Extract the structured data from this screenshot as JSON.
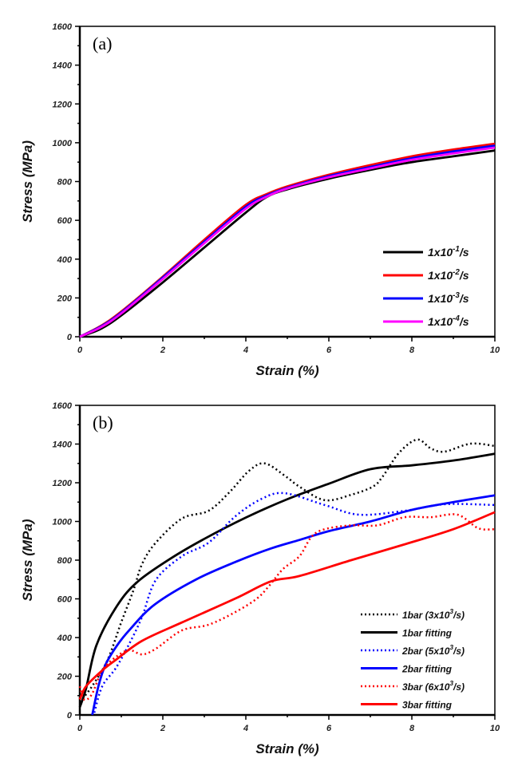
{
  "chart_data": [
    {
      "type": "line",
      "panel_label": "(a)",
      "xlabel": "Strain (%)",
      "ylabel": "Stress (MPa)",
      "xlim": [
        0,
        10
      ],
      "ylim": [
        0,
        1600
      ],
      "xticks": [
        0,
        2,
        4,
        6,
        8,
        10
      ],
      "yticks": [
        0,
        200,
        400,
        600,
        800,
        1000,
        1200,
        1400,
        1600
      ],
      "grid": false,
      "legend_position": "bottom-right",
      "series": [
        {
          "name": "1x10-1/s",
          "name_base": "1x10",
          "name_exp": "-1",
          "name_unit": "/s",
          "color": "#000000",
          "style": "solid",
          "points": [
            [
              0,
              0
            ],
            [
              0.5,
              40
            ],
            [
              1,
              110
            ],
            [
              2,
              280
            ],
            [
              3,
              460
            ],
            [
              4,
              640
            ],
            [
              4.5,
              720
            ],
            [
              5,
              760
            ],
            [
              6,
              815
            ],
            [
              7,
              860
            ],
            [
              8,
              900
            ],
            [
              9,
              930
            ],
            [
              10,
              960
            ]
          ]
        },
        {
          "name": "1x10-2/s",
          "name_base": "1x10",
          "name_exp": "-2",
          "name_unit": "/s",
          "color": "#ff0000",
          "style": "solid",
          "points": [
            [
              0,
              0
            ],
            [
              0.5,
              55
            ],
            [
              1,
              130
            ],
            [
              2,
              310
            ],
            [
              3,
              500
            ],
            [
              4,
              680
            ],
            [
              4.5,
              735
            ],
            [
              5,
              775
            ],
            [
              6,
              835
            ],
            [
              7,
              885
            ],
            [
              8,
              930
            ],
            [
              9,
              965
            ],
            [
              10,
              995
            ]
          ]
        },
        {
          "name": "1x10-3/s",
          "name_base": "1x10",
          "name_exp": "-3",
          "name_unit": "/s",
          "color": "#0000ff",
          "style": "solid",
          "points": [
            [
              0,
              0
            ],
            [
              0.5,
              52
            ],
            [
              1,
              125
            ],
            [
              2,
              305
            ],
            [
              3,
              490
            ],
            [
              4,
              670
            ],
            [
              4.5,
              728
            ],
            [
              5,
              768
            ],
            [
              6,
              828
            ],
            [
              7,
              875
            ],
            [
              8,
              920
            ],
            [
              9,
              955
            ],
            [
              10,
              985
            ]
          ]
        },
        {
          "name": "1x10-4/s",
          "name_base": "1x10",
          "name_exp": "-4",
          "name_unit": "/s",
          "color": "#ff00ff",
          "style": "solid",
          "points": [
            [
              0,
              0
            ],
            [
              0.5,
              48
            ],
            [
              1,
              120
            ],
            [
              2,
              298
            ],
            [
              3,
              482
            ],
            [
              4,
              660
            ],
            [
              4.5,
              722
            ],
            [
              5,
              764
            ],
            [
              6,
              822
            ],
            [
              7,
              868
            ],
            [
              8,
              912
            ],
            [
              9,
              945
            ],
            [
              10,
              975
            ]
          ]
        }
      ]
    },
    {
      "type": "line",
      "panel_label": "(b)",
      "xlabel": "Strain (%)",
      "ylabel": "Stress (MPa)",
      "xlim": [
        0,
        10
      ],
      "ylim": [
        0,
        1600
      ],
      "xticks": [
        0,
        2,
        4,
        6,
        8,
        10
      ],
      "yticks": [
        0,
        200,
        400,
        600,
        800,
        1000,
        1200,
        1400,
        1600
      ],
      "grid": false,
      "legend_position": "bottom-right",
      "series": [
        {
          "name": "1bar (3x10^3/s)",
          "name_base": "1bar (3x10",
          "name_exp": "3",
          "name_unit": "/s)",
          "color": "#000000",
          "style": "dotted",
          "points": [
            [
              0,
              66
            ],
            [
              0.3,
              150
            ],
            [
              0.67,
              285
            ],
            [
              1.0,
              480
            ],
            [
              1.29,
              643
            ],
            [
              1.5,
              780
            ],
            [
              1.83,
              890
            ],
            [
              2.46,
              1015
            ],
            [
              3.1,
              1055
            ],
            [
              3.6,
              1150
            ],
            [
              4.08,
              1262
            ],
            [
              4.46,
              1300
            ],
            [
              4.96,
              1233
            ],
            [
              5.29,
              1180
            ],
            [
              5.9,
              1110
            ],
            [
              6.54,
              1138
            ],
            [
              7.06,
              1180
            ],
            [
              7.3,
              1233
            ],
            [
              7.7,
              1357
            ],
            [
              8.13,
              1423
            ],
            [
              8.46,
              1377
            ],
            [
              8.79,
              1361
            ],
            [
              9.42,
              1402
            ],
            [
              10,
              1390
            ]
          ]
        },
        {
          "name": "1bar fitting",
          "color": "#000000",
          "style": "solid",
          "points": [
            [
              0,
              40
            ],
            [
              0.15,
              136
            ],
            [
              0.4,
              360
            ],
            [
              0.9,
              565
            ],
            [
              1.4,
              690
            ],
            [
              2.2,
              810
            ],
            [
              3,
              910
            ],
            [
              4,
              1020
            ],
            [
              5,
              1115
            ],
            [
              6,
              1195
            ],
            [
              7,
              1270
            ],
            [
              8,
              1290
            ],
            [
              9,
              1315
            ],
            [
              10,
              1350
            ]
          ]
        },
        {
          "name": "2bar (5x10^3/s)",
          "name_base": "2bar (5x10",
          "name_exp": "3",
          "name_unit": "/s)",
          "color": "#0000ff",
          "style": "dotted",
          "points": [
            [
              0.35,
              12
            ],
            [
              0.54,
              148
            ],
            [
              0.87,
              243
            ],
            [
              1.19,
              367
            ],
            [
              1.5,
              507
            ],
            [
              1.83,
              697
            ],
            [
              2.46,
              820
            ],
            [
              3.1,
              890
            ],
            [
              3.75,
              1027
            ],
            [
              4.38,
              1117
            ],
            [
              4.94,
              1146
            ],
            [
              5.9,
              1085
            ],
            [
              6.73,
              1035
            ],
            [
              7.83,
              1055
            ],
            [
              8.79,
              1089
            ],
            [
              10,
              1085
            ]
          ]
        },
        {
          "name": "2bar fitting",
          "color": "#0000ff",
          "style": "solid",
          "points": [
            [
              0.3,
              0
            ],
            [
              0.45,
              150
            ],
            [
              0.62,
              260
            ],
            [
              0.9,
              360
            ],
            [
              1.2,
              440
            ],
            [
              1.8,
              570
            ],
            [
              2.8,
              700
            ],
            [
              3.8,
              795
            ],
            [
              4.6,
              860
            ],
            [
              5.3,
              905
            ],
            [
              6,
              950
            ],
            [
              7,
              1000
            ],
            [
              8,
              1060
            ],
            [
              9,
              1100
            ],
            [
              10,
              1135
            ]
          ]
        },
        {
          "name": "3bar (6x10^3/s)",
          "name_base": "3bar (6x10",
          "name_exp": "3",
          "name_unit": "/s)",
          "color": "#ff0000",
          "style": "dotted",
          "points": [
            [
              0,
              148
            ],
            [
              0.1,
              80
            ],
            [
              0.29,
              107
            ],
            [
              0.54,
              230
            ],
            [
              0.87,
              300
            ],
            [
              1.19,
              335
            ],
            [
              1.5,
              313
            ],
            [
              1.83,
              342
            ],
            [
              2.46,
              437
            ],
            [
              3.1,
              466
            ],
            [
              3.75,
              532
            ],
            [
              4.27,
              602
            ],
            [
              4.58,
              672
            ],
            [
              4.9,
              755
            ],
            [
              5.29,
              820
            ],
            [
              5.58,
              920
            ],
            [
              5.9,
              960
            ],
            [
              6.54,
              980
            ],
            [
              7.17,
              980
            ],
            [
              7.83,
              1022
            ],
            [
              8.46,
              1022
            ],
            [
              9.1,
              1035
            ],
            [
              9.6,
              965
            ],
            [
              10,
              960
            ]
          ]
        },
        {
          "name": "3bar fitting",
          "color": "#ff0000",
          "style": "solid",
          "points": [
            [
              0,
              80
            ],
            [
              0.15,
              148
            ],
            [
              0.54,
              230
            ],
            [
              0.87,
              285
            ],
            [
              1.5,
              383
            ],
            [
              2.46,
              478
            ],
            [
              3.75,
              602
            ],
            [
              4.6,
              690
            ],
            [
              5.29,
              718
            ],
            [
              6.54,
              800
            ],
            [
              7.83,
              882
            ],
            [
              9,
              960
            ],
            [
              10,
              1048
            ]
          ]
        }
      ]
    }
  ]
}
